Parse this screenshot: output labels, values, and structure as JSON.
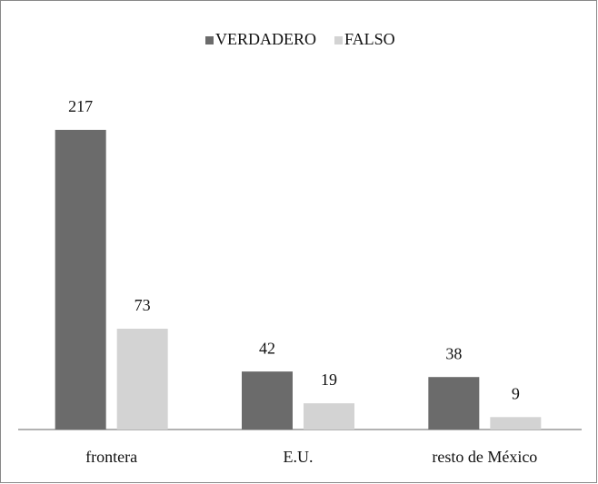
{
  "chart_data": {
    "type": "bar",
    "categories": [
      "frontera",
      "E.U.",
      "resto de México"
    ],
    "series": [
      {
        "name": "VERDADERO",
        "color": "#6b6b6b",
        "values": [
          217,
          42,
          38
        ]
      },
      {
        "name": "FALSO",
        "color": "#d3d3d3",
        "values": [
          73,
          19,
          9
        ]
      }
    ],
    "legend": "top"
  }
}
